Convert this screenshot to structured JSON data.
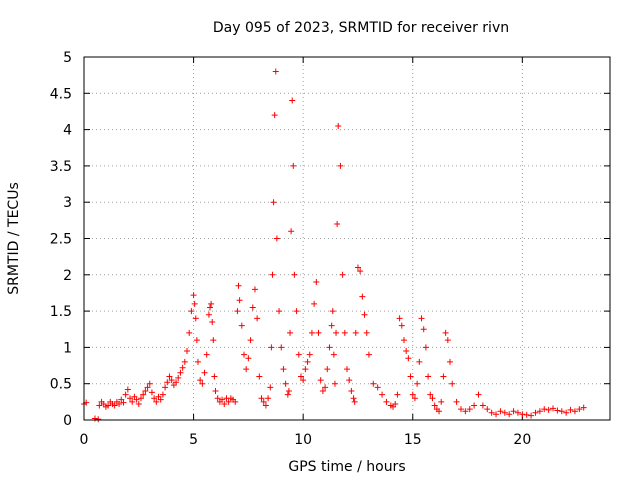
{
  "chart_data": {
    "type": "scatter",
    "title": "Day 095 of 2023, SRMTID for receiver rivn",
    "xlabel": "GPS time / hours",
    "ylabel": "SRMTID / TECUs",
    "xlim": [
      0,
      24
    ],
    "ylim": [
      0,
      5
    ],
    "x_ticks": [
      0,
      5,
      10,
      15,
      20
    ],
    "x_tick_labels": [
      "0",
      "5",
      "10",
      "15",
      "20"
    ],
    "y_ticks": [
      0,
      0.5,
      1,
      1.5,
      2,
      2.5,
      3,
      3.5,
      4,
      4.5,
      5
    ],
    "y_tick_labels": [
      "0",
      "0.5",
      "1",
      "1.5",
      "2",
      "2.5",
      "3",
      "3.5",
      "4",
      "4.5",
      "5"
    ],
    "grid": true,
    "marker": "+",
    "color": "#ff0000",
    "series": [
      {
        "name": "SRMTID",
        "x": [
          0.0,
          0.1,
          0.5,
          0.65,
          0.7,
          0.8,
          0.9,
          1.0,
          1.1,
          1.2,
          1.3,
          1.4,
          1.5,
          1.6,
          1.7,
          1.8,
          1.9,
          2.0,
          2.1,
          2.2,
          2.3,
          2.4,
          2.5,
          2.6,
          2.7,
          2.8,
          2.9,
          3.0,
          3.1,
          3.2,
          3.3,
          3.4,
          3.5,
          3.6,
          3.7,
          3.8,
          3.9,
          4.0,
          4.1,
          4.2,
          4.3,
          4.4,
          4.5,
          4.6,
          4.7,
          4.8,
          4.9,
          5.0,
          5.05,
          5.1,
          5.15,
          5.2,
          5.3,
          5.4,
          5.5,
          5.6,
          5.7,
          5.75,
          5.8,
          5.85,
          5.9,
          5.95,
          6.0,
          6.1,
          6.2,
          6.3,
          6.4,
          6.5,
          6.6,
          6.7,
          6.8,
          6.9,
          7.0,
          7.05,
          7.1,
          7.2,
          7.3,
          7.4,
          7.5,
          7.6,
          7.7,
          7.8,
          7.9,
          8.0,
          8.1,
          8.2,
          8.3,
          8.4,
          8.5,
          8.55,
          8.6,
          8.65,
          8.7,
          8.75,
          8.8,
          8.9,
          9.0,
          9.1,
          9.2,
          9.3,
          9.35,
          9.4,
          9.45,
          9.5,
          9.55,
          9.6,
          9.7,
          9.8,
          9.9,
          10.0,
          10.1,
          10.2,
          10.3,
          10.4,
          10.5,
          10.6,
          10.7,
          10.8,
          10.9,
          11.0,
          11.1,
          11.2,
          11.3,
          11.35,
          11.4,
          11.45,
          11.5,
          11.55,
          11.6,
          11.7,
          11.8,
          11.9,
          12.0,
          12.1,
          12.2,
          12.3,
          12.35,
          12.4,
          12.5,
          12.6,
          12.7,
          12.8,
          12.9,
          13.0,
          13.2,
          13.4,
          13.6,
          13.8,
          14.0,
          14.1,
          14.2,
          14.3,
          14.4,
          14.5,
          14.6,
          14.7,
          14.8,
          14.9,
          15.0,
          15.1,
          15.2,
          15.3,
          15.4,
          15.5,
          15.6,
          15.7,
          15.8,
          15.9,
          16.0,
          16.1,
          16.2,
          16.3,
          16.4,
          16.5,
          16.6,
          16.7,
          16.8,
          17.0,
          17.2,
          17.4,
          17.6,
          17.8,
          18.0,
          18.2,
          18.4,
          18.6,
          18.8,
          19.0,
          19.2,
          19.4,
          19.6,
          19.8,
          20.0,
          20.2,
          20.4,
          20.6,
          20.8,
          21.0,
          21.2,
          21.4,
          21.6,
          21.8,
          22.0,
          22.2,
          22.4,
          22.6,
          22.8
        ],
        "y": [
          0.22,
          0.24,
          0.02,
          0.01,
          0.2,
          0.25,
          0.22,
          0.18,
          0.2,
          0.25,
          0.22,
          0.2,
          0.25,
          0.22,
          0.28,
          0.24,
          0.35,
          0.42,
          0.3,
          0.25,
          0.32,
          0.28,
          0.22,
          0.3,
          0.35,
          0.4,
          0.45,
          0.5,
          0.38,
          0.3,
          0.25,
          0.32,
          0.28,
          0.35,
          0.45,
          0.52,
          0.6,
          0.55,
          0.48,
          0.52,
          0.58,
          0.65,
          0.72,
          0.8,
          0.95,
          1.2,
          1.5,
          1.72,
          1.6,
          1.4,
          1.1,
          0.8,
          0.55,
          0.5,
          0.65,
          0.9,
          1.45,
          1.55,
          1.6,
          1.35,
          1.1,
          0.6,
          0.4,
          0.3,
          0.25,
          0.28,
          0.22,
          0.3,
          0.25,
          0.3,
          0.28,
          0.25,
          1.5,
          1.85,
          1.65,
          1.3,
          0.9,
          0.7,
          0.85,
          1.1,
          1.55,
          1.8,
          1.4,
          0.6,
          0.3,
          0.25,
          0.2,
          0.3,
          0.45,
          1.0,
          2.0,
          3.0,
          4.2,
          4.8,
          2.5,
          1.5,
          1.0,
          0.7,
          0.5,
          0.35,
          0.4,
          1.2,
          2.6,
          4.4,
          3.5,
          2.0,
          1.5,
          0.9,
          0.6,
          0.55,
          0.7,
          0.8,
          0.9,
          1.2,
          1.6,
          1.9,
          1.2,
          0.55,
          0.4,
          0.45,
          0.7,
          1.0,
          1.3,
          1.5,
          0.9,
          0.5,
          1.2,
          2.7,
          4.05,
          3.5,
          2.0,
          1.2,
          0.7,
          0.55,
          0.4,
          0.3,
          0.25,
          1.2,
          2.1,
          2.05,
          1.7,
          1.45,
          1.2,
          0.9,
          0.5,
          0.45,
          0.35,
          0.25,
          0.2,
          0.18,
          0.22,
          0.35,
          1.4,
          1.3,
          1.1,
          0.95,
          0.85,
          0.6,
          0.35,
          0.3,
          0.5,
          0.8,
          1.4,
          1.25,
          1.0,
          0.6,
          0.35,
          0.3,
          0.2,
          0.15,
          0.12,
          0.25,
          0.6,
          1.2,
          1.1,
          0.8,
          0.5,
          0.25,
          0.15,
          0.12,
          0.15,
          0.2,
          0.35,
          0.2,
          0.15,
          0.1,
          0.08,
          0.12,
          0.1,
          0.08,
          0.12,
          0.1,
          0.08,
          0.07,
          0.06,
          0.1,
          0.12,
          0.15,
          0.14,
          0.16,
          0.13,
          0.12,
          0.1,
          0.14,
          0.12,
          0.15,
          0.17
        ]
      }
    ]
  }
}
